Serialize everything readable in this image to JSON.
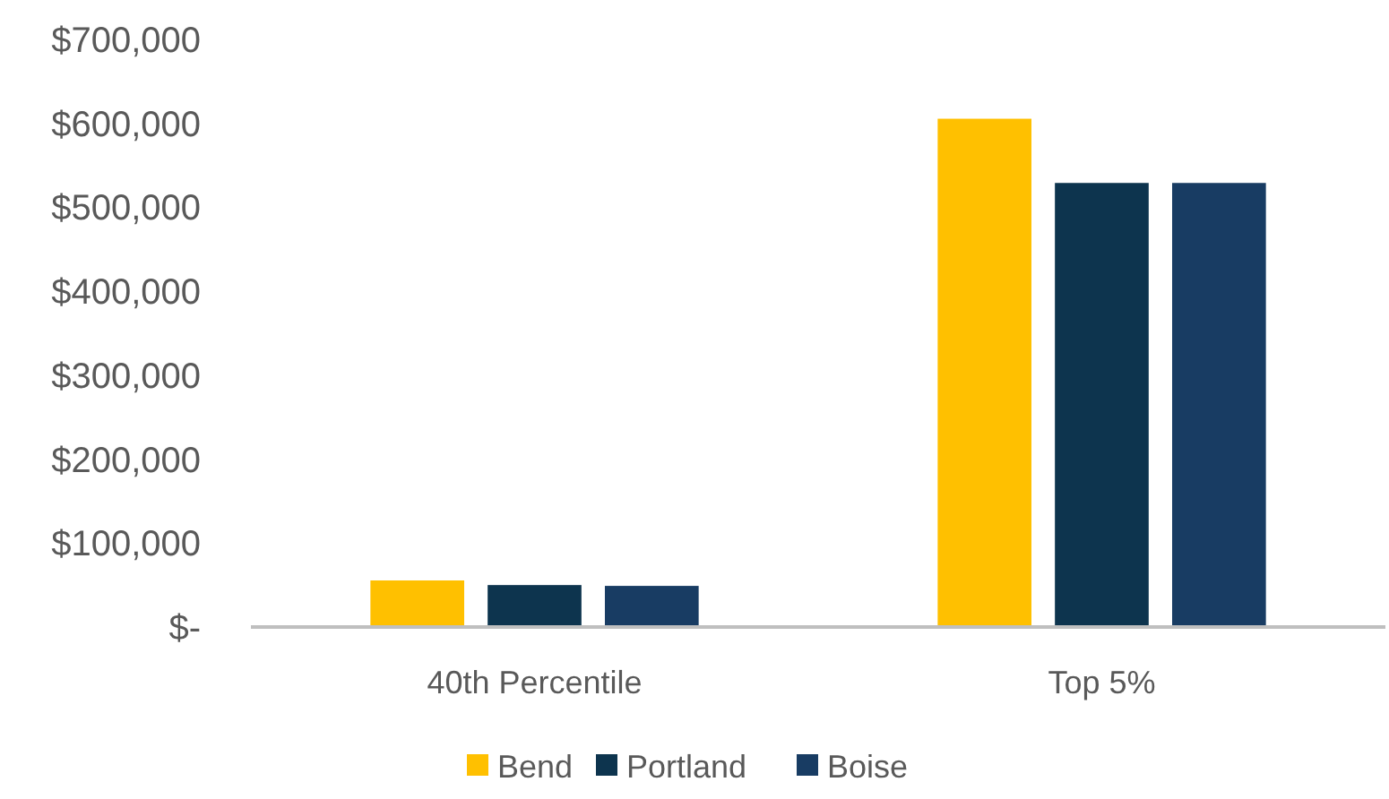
{
  "chart_data": {
    "type": "bar",
    "categories": [
      "40th Percentile",
      "Top 5%"
    ],
    "series": [
      {
        "name": "Bend",
        "color": "#ffc000",
        "values": [
          55500,
          605500
        ]
      },
      {
        "name": "Portland",
        "color": "#0d344e",
        "values": [
          50000,
          529000
        ]
      },
      {
        "name": "Boise",
        "color": "#183c63",
        "values": [
          49000,
          529000
        ]
      }
    ],
    "ylim": [
      0,
      700000
    ],
    "yticks": [
      {
        "value": 0,
        "label": "$-"
      },
      {
        "value": 100000,
        "label": "$100,000"
      },
      {
        "value": 200000,
        "label": "$200,000"
      },
      {
        "value": 300000,
        "label": "$300,000"
      },
      {
        "value": 400000,
        "label": "$400,000"
      },
      {
        "value": 500000,
        "label": "$500,000"
      },
      {
        "value": 600000,
        "label": "$600,000"
      },
      {
        "value": 700000,
        "label": "$700,000"
      }
    ],
    "legend": "bottom",
    "grid": false
  }
}
